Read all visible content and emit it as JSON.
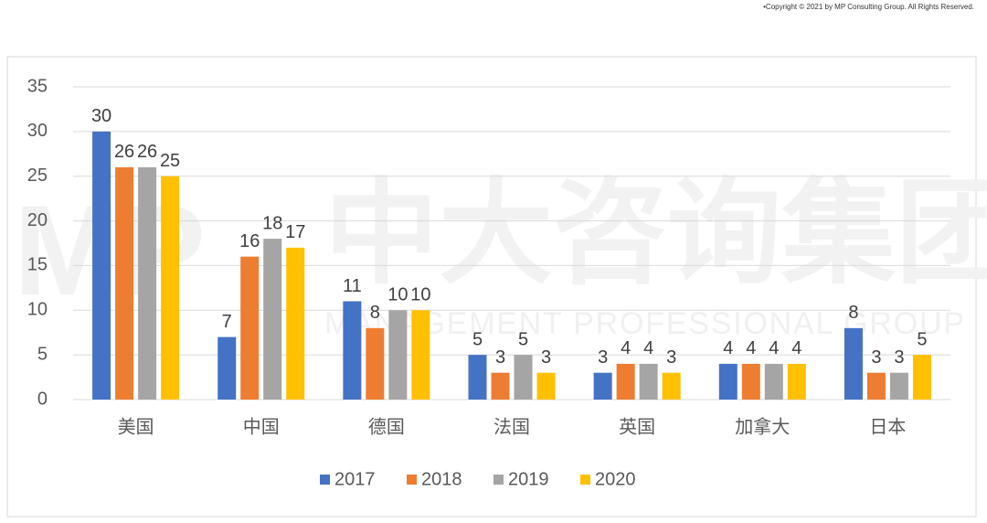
{
  "copyright": "•Copyright © 2021 by MP Consulting Group. All Rights Reserved.",
  "watermark": {
    "logo": "MP",
    "name": "中大咨询集团",
    "tagline": "MANAGEMENT PROFESSIONAL GROUP"
  },
  "chart_data": {
    "type": "bar",
    "categories": [
      "美国",
      "中国",
      "德国",
      "法国",
      "英国",
      "加拿大",
      "日本"
    ],
    "series": [
      {
        "name": "2017",
        "color": "#4472c4",
        "values": [
          30,
          7,
          11,
          5,
          3,
          4,
          8
        ]
      },
      {
        "name": "2018",
        "color": "#ed7d31",
        "values": [
          26,
          16,
          8,
          3,
          4,
          4,
          3
        ]
      },
      {
        "name": "2019",
        "color": "#a5a5a5",
        "values": [
          26,
          18,
          10,
          5,
          4,
          4,
          3
        ]
      },
      {
        "name": "2020",
        "color": "#ffc000",
        "values": [
          25,
          17,
          10,
          3,
          3,
          4,
          5
        ]
      }
    ],
    "ylim": [
      0,
      35
    ],
    "yticks": [
      0,
      5,
      10,
      15,
      20,
      25,
      30,
      35
    ],
    "grid": true,
    "legend": "bottom"
  }
}
